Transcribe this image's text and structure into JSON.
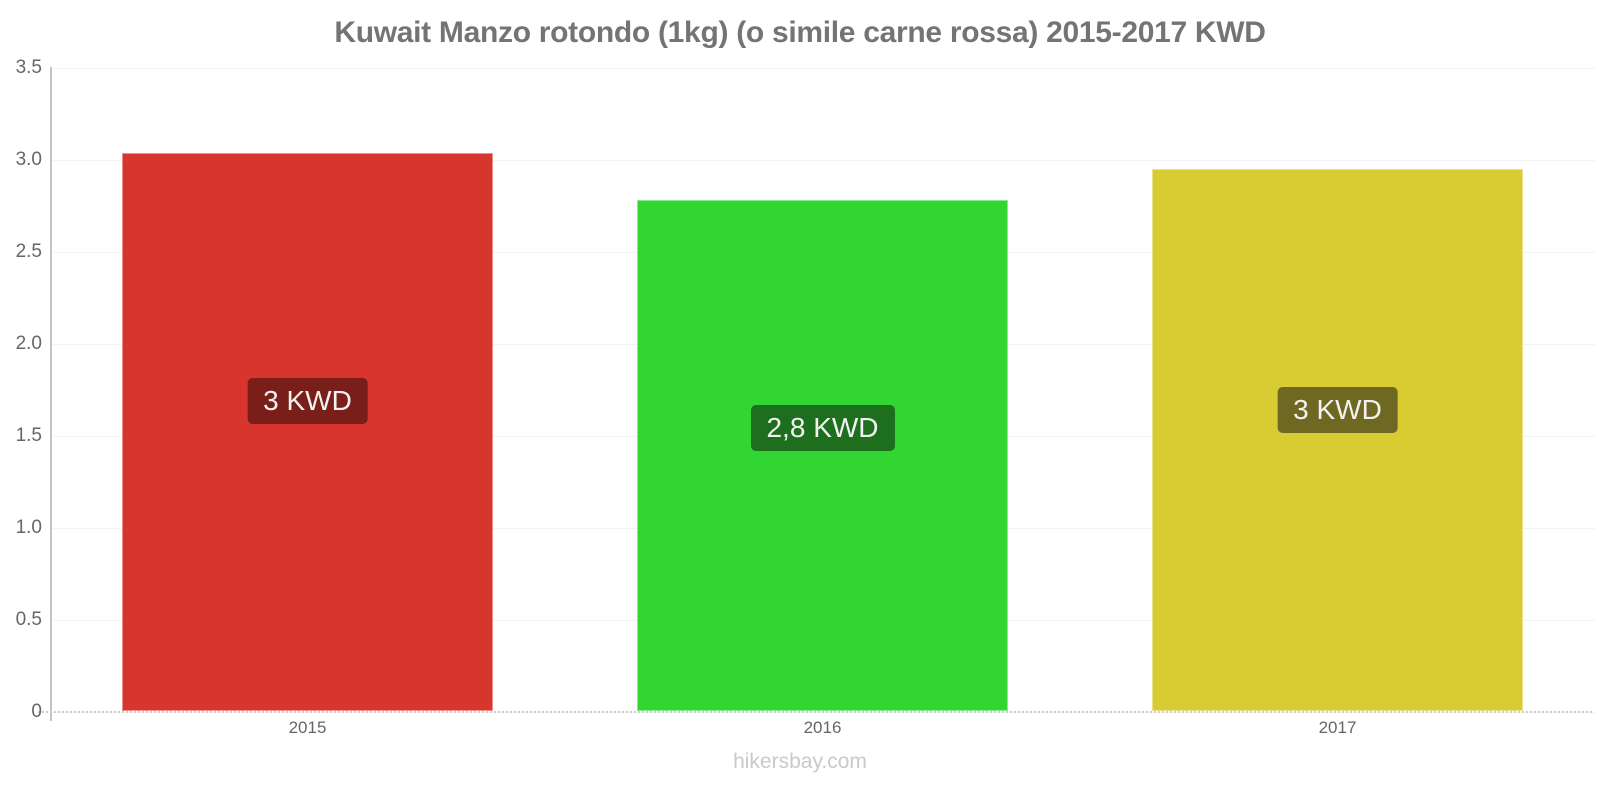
{
  "title": "Kuwait Manzo rotondo (1kg) (o simile carne rossa) 2015-2017 KWD",
  "footer": "hikersbay.com",
  "colors": {
    "title_text": "#747474",
    "tick_text": "#666666",
    "gridline": "#f3f3f3",
    "axis_line": "#c4c4c4",
    "baseline_dotted": "#cccccc",
    "footer_text": "#c9c9c9",
    "bar_label_text": "#f2f2f2"
  },
  "chart_data": {
    "type": "bar",
    "title": "Kuwait Manzo rotondo (1kg) (o simile carne rossa) 2015-2017 KWD",
    "categories": [
      "2015",
      "2016",
      "2017"
    ],
    "values": [
      3.04,
      2.78,
      2.95
    ],
    "bar_labels": [
      "3 KWD",
      "2,8 KWD",
      "3 KWD"
    ],
    "bar_colors": [
      "#d9352f",
      "#32d632",
      "#d9cb32"
    ],
    "label_bg_colors": [
      "#7a1e19",
      "#1d6e1d",
      "#6f6823"
    ],
    "xlabel": "",
    "ylabel": "",
    "ylim": [
      0,
      3.5
    ],
    "yticks": [
      {
        "value": 3.5,
        "label": "3.5"
      },
      {
        "value": 3.0,
        "label": "3.0"
      },
      {
        "value": 2.5,
        "label": "2.5"
      },
      {
        "value": 2.0,
        "label": "2.0"
      },
      {
        "value": 1.5,
        "label": "1.5"
      },
      {
        "value": 1.0,
        "label": "1.0"
      },
      {
        "value": 0.5,
        "label": "0.5"
      },
      {
        "value": 0,
        "label": "0"
      }
    ],
    "grid": "horizontal",
    "legend": "none",
    "watermark": "hikersbay.com"
  }
}
